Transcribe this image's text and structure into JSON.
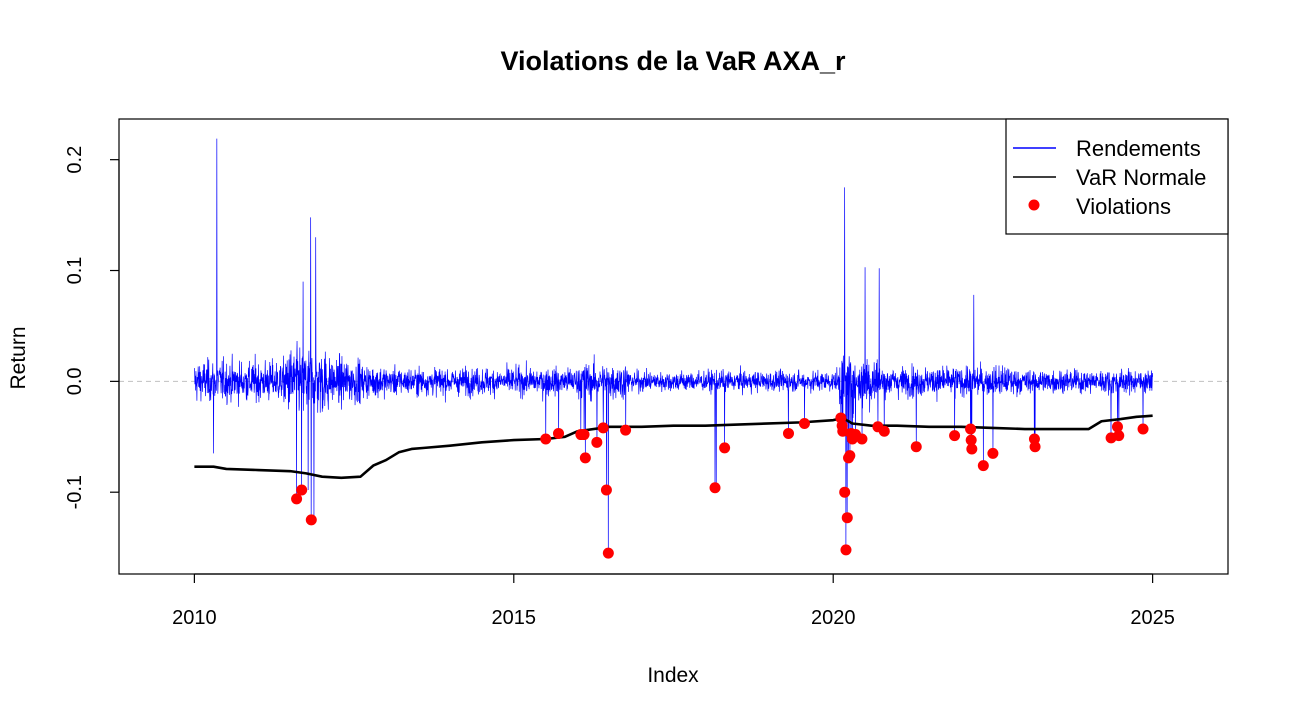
{
  "chart_data": {
    "type": "line",
    "title": "Violations de la VaR AXA_r",
    "xlabel": "Index",
    "ylabel": "Return",
    "xlim": [
      2010,
      2025
    ],
    "ylim": [
      -0.17,
      0.235
    ],
    "x_ticks": [
      2010,
      2015,
      2020,
      2025
    ],
    "x_tick_labels": [
      "2010",
      "2015",
      "2020",
      "2025"
    ],
    "y_ticks": [
      -0.1,
      0.0,
      0.1,
      0.2
    ],
    "y_tick_labels": [
      "-0.1",
      "0.0",
      "0.1",
      "0.2"
    ],
    "grid": false,
    "zero_line": {
      "value": 0.0,
      "style": "dashed",
      "color": "#c0c0c0"
    },
    "legend": {
      "placement": "top-right",
      "entries": [
        {
          "label": "Rendements",
          "kind": "line",
          "color": "#0000ff"
        },
        {
          "label": "VaR Normale",
          "kind": "line",
          "color": "#000000"
        },
        {
          "label": "Violations",
          "kind": "point",
          "color": "#ff0000"
        }
      ]
    },
    "series": [
      {
        "name": "Rendements",
        "color": "#0000ff",
        "note_spikes": [
          [
            2010.35,
            0.219
          ],
          [
            2010.3,
            -0.065
          ],
          [
            2011.7,
            0.09
          ],
          [
            2011.78,
            -0.098
          ],
          [
            2011.82,
            0.148
          ],
          [
            2011.9,
            0.13
          ],
          [
            2011.87,
            -0.125
          ],
          [
            2016.48,
            -0.155
          ],
          [
            2018.17,
            -0.096
          ],
          [
            2020.18,
            0.175
          ],
          [
            2020.2,
            -0.152
          ],
          [
            2020.5,
            0.103
          ],
          [
            2020.72,
            0.102
          ],
          [
            2022.2,
            0.078
          ]
        ]
      },
      {
        "name": "VaR Normale",
        "color": "#000000",
        "x": [
          2010.0,
          2010.3,
          2010.5,
          2011.0,
          2011.5,
          2011.75,
          2012.0,
          2012.3,
          2012.6,
          2012.8,
          2013.0,
          2013.2,
          2013.4,
          2013.6,
          2014.0,
          2014.5,
          2015.0,
          2015.5,
          2015.8,
          2016.0,
          2016.5,
          2017.0,
          2017.5,
          2018.0,
          2018.5,
          2019.0,
          2019.5,
          2020.0,
          2020.15,
          2020.3,
          2020.6,
          2021.0,
          2021.5,
          2022.0,
          2022.5,
          2023.0,
          2023.5,
          2024.0,
          2024.2,
          2024.5,
          2024.75,
          2025.0
        ],
        "values": [
          -0.077,
          -0.077,
          -0.079,
          -0.08,
          -0.081,
          -0.083,
          -0.086,
          -0.087,
          -0.086,
          -0.076,
          -0.071,
          -0.064,
          -0.061,
          -0.06,
          -0.058,
          -0.055,
          -0.053,
          -0.052,
          -0.05,
          -0.045,
          -0.041,
          -0.041,
          -0.04,
          -0.04,
          -0.039,
          -0.038,
          -0.037,
          -0.035,
          -0.033,
          -0.038,
          -0.04,
          -0.04,
          -0.041,
          -0.041,
          -0.042,
          -0.043,
          -0.043,
          -0.043,
          -0.036,
          -0.034,
          -0.032,
          -0.031
        ]
      },
      {
        "name": "Violations",
        "color": "#ff0000",
        "x": [
          2011.6,
          2011.68,
          2011.83,
          2015.5,
          2015.7,
          2016.05,
          2016.1,
          2016.12,
          2016.3,
          2016.4,
          2016.45,
          2016.48,
          2016.75,
          2018.15,
          2018.3,
          2019.3,
          2019.55,
          2020.12,
          2020.14,
          2020.15,
          2020.18,
          2020.2,
          2020.22,
          2020.24,
          2020.26,
          2020.28,
          2020.3,
          2020.35,
          2020.45,
          2020.7,
          2020.8,
          2021.3,
          2021.9,
          2022.15,
          2022.16,
          2022.17,
          2022.35,
          2022.5,
          2023.15,
          2023.16,
          2024.35,
          2024.45,
          2024.47,
          2024.85
        ],
        "values": [
          -0.106,
          -0.098,
          -0.125,
          -0.052,
          -0.047,
          -0.048,
          -0.048,
          -0.069,
          -0.055,
          -0.042,
          -0.098,
          -0.155,
          -0.044,
          -0.096,
          -0.06,
          -0.047,
          -0.038,
          -0.033,
          -0.04,
          -0.045,
          -0.1,
          -0.152,
          -0.123,
          -0.069,
          -0.067,
          -0.047,
          -0.052,
          -0.048,
          -0.052,
          -0.041,
          -0.045,
          -0.059,
          -0.049,
          -0.043,
          -0.053,
          -0.061,
          -0.076,
          -0.065,
          -0.052,
          -0.059,
          -0.051,
          -0.041,
          -0.049,
          -0.043
        ]
      }
    ]
  }
}
